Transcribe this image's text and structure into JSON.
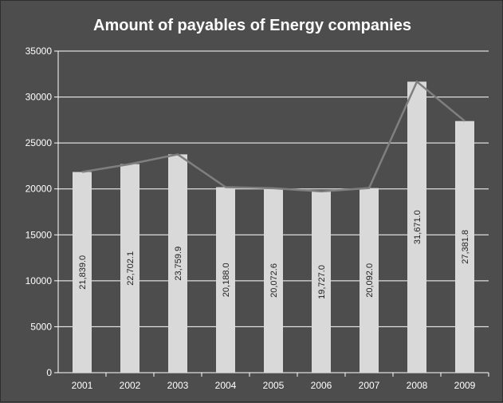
{
  "chart_data": {
    "type": "bar",
    "title": "Amount of payables of Energy companies",
    "xlabel": "",
    "ylabel": "",
    "categories": [
      "2001",
      "2002",
      "2003",
      "2004",
      "2005",
      "2006",
      "2007",
      "2008",
      "2009"
    ],
    "values": [
      21839.0,
      22702.1,
      23759.9,
      20188.0,
      20072.6,
      19727.0,
      20092.0,
      31671.0,
      27381.8
    ],
    "data_labels": [
      "21,839.0",
      "22,702.1",
      "23,759.9",
      "20,188.0",
      "20,072.6",
      "19,727.0",
      "20,092.0",
      "31,671.0",
      "27,381.8"
    ],
    "overlay_line": true,
    "ylim": [
      0,
      35000
    ],
    "yticks": [
      "0",
      "5000",
      "10000",
      "15000",
      "20000",
      "25000",
      "30000",
      "35000"
    ],
    "grid": true,
    "legend": "none",
    "colors": {
      "background": "#4d4d4d",
      "bar": "#d9d9d9",
      "line": "#7f7f7f",
      "grid": "#ffffff",
      "text": "#ffffff"
    }
  }
}
